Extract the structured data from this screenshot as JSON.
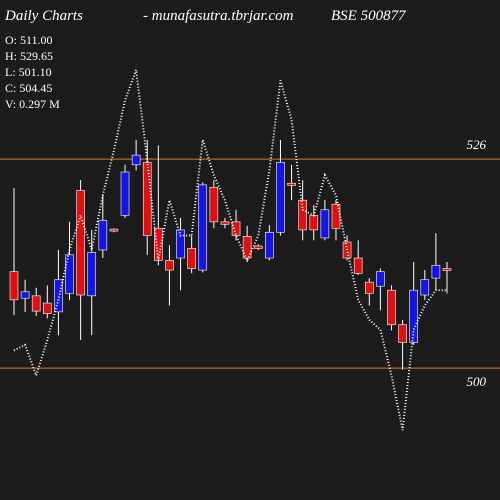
{
  "chart_data": {
    "type": "candlestick",
    "title": "Daily Charts",
    "subtitle": "- munafasutra.tbrjar.com",
    "symbol": "BSE 500877",
    "info": [
      "O: 511.00",
      "H: 529.65",
      "L: 501.10",
      "C: 504.45",
      "V: 0.297 M"
    ],
    "open": [
      512.0,
      508.7,
      509.0,
      508.1,
      507.0,
      509.3,
      522.1,
      509.0,
      514.7,
      517.3,
      519.0,
      525.3,
      525.6,
      517.4,
      513.4,
      513.7,
      514.9,
      512.2,
      522.5,
      518.2,
      518.2,
      516.4,
      515.2,
      513.7,
      516.9,
      523.0,
      520.9,
      519.0,
      516.2,
      520.4,
      515.7,
      513.7,
      510.7,
      510.2,
      509.7,
      505.4,
      503.2,
      509.1,
      511.2,
      512.4
    ],
    "high": [
      522.4,
      511.0,
      510.0,
      510.3,
      514.7,
      518.2,
      523.4,
      517.2,
      521.5,
      517.4,
      525.3,
      528.4,
      528.4,
      527.7,
      515.3,
      518.7,
      516.5,
      523.1,
      523.4,
      518.7,
      519.7,
      517.7,
      515.4,
      517.8,
      528.4,
      525.3,
      523.4,
      520.3,
      520.9,
      520.9,
      516.5,
      515.9,
      511.2,
      512.4,
      510.3,
      506.0,
      513.2,
      512.2,
      516.8,
      513.2
    ],
    "low": [
      506.6,
      507.0,
      506.5,
      506.2,
      504.1,
      508.5,
      503.5,
      504.1,
      513.7,
      516.9,
      518.7,
      524.6,
      514.1,
      512.8,
      507.8,
      509.7,
      511.8,
      511.9,
      517.4,
      517.4,
      515.9,
      513.2,
      514.7,
      513.4,
      516.5,
      520.9,
      515.9,
      515.9,
      515.9,
      515.9,
      513.4,
      511.6,
      507.8,
      507.2,
      504.7,
      499.8,
      502.9,
      508.5,
      509.7,
      509.3
    ],
    "close": [
      508.5,
      509.5,
      507.1,
      506.8,
      511.0,
      514.1,
      509.1,
      514.4,
      518.4,
      517.1,
      524.4,
      526.5,
      516.5,
      513.4,
      512.2,
      517.2,
      512.4,
      522.8,
      518.2,
      517.9,
      516.5,
      513.7,
      514.9,
      516.9,
      525.6,
      522.8,
      517.2,
      517.2,
      519.7,
      517.4,
      513.7,
      511.8,
      509.3,
      512.0,
      505.4,
      503.2,
      509.7,
      511.0,
      512.8,
      512.2
    ],
    "line": [
      502.2,
      502.9,
      499.1,
      503.5,
      508.5,
      514.7,
      519.0,
      514.7,
      521.5,
      527.1,
      533.3,
      537.1,
      525.9,
      513.4,
      520.9,
      516.5,
      516.5,
      528.4,
      524.0,
      520.9,
      516.5,
      513.4,
      516.5,
      524.6,
      535.8,
      530.9,
      519.7,
      519.0,
      524.0,
      521.5,
      514.7,
      508.5,
      506.0,
      504.8,
      499.1,
      492.3,
      504.8,
      507.8,
      509.7,
      509.7
    ],
    "levels": [
      526,
      500
    ],
    "ylim": [
      483.6,
      545.8
    ],
    "up_color": "#1515e8",
    "down_color": "#e01010",
    "line_color": "#ffffff",
    "level_color": "#e07a20"
  }
}
